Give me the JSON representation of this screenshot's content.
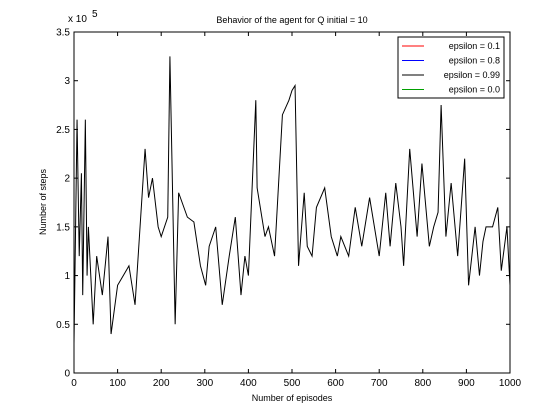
{
  "chart_data": {
    "type": "line",
    "title": "Behavior of the agent for Q initial = 10",
    "xlabel": "Number of episodes",
    "ylabel": "Number of steps",
    "y_exponent_label": "x 10",
    "y_exponent_power": "5",
    "xlim": [
      0,
      1000
    ],
    "ylim": [
      0,
      3.5
    ],
    "x_ticks": [
      0,
      100,
      200,
      300,
      400,
      500,
      600,
      700,
      800,
      900,
      1000
    ],
    "x_tick_labels": [
      "0",
      "100",
      "200",
      "300",
      "400",
      "500",
      "600",
      "700",
      "800",
      "900",
      "1000"
    ],
    "y_ticks": [
      0,
      0.5,
      1,
      1.5,
      2,
      2.5,
      3,
      3.5
    ],
    "y_tick_labels": [
      "0",
      "0.5",
      "1",
      "1.5",
      "2",
      "2.5",
      "3",
      "3.5"
    ],
    "grid": false,
    "legend_position": "top-right",
    "series": [
      {
        "name": "epsilon = 0.1",
        "color": "#ff0000",
        "x": [
          0,
          1000
        ],
        "values": [
          0.0,
          0.0
        ]
      },
      {
        "name": "epsilon = 0.8",
        "color": "#0000ff",
        "x": [
          0,
          1000
        ],
        "values": [
          0.0,
          0.0
        ]
      },
      {
        "name": "epsilon = 0.99",
        "color": "#000000",
        "x": [
          0,
          7,
          12,
          17,
          20,
          26,
          30,
          33,
          44,
          52,
          65,
          78,
          85,
          100,
          113,
          126,
          140,
          163,
          171,
          180,
          193,
          200,
          215,
          220,
          232,
          240,
          260,
          275,
          290,
          302,
          310,
          325,
          340,
          356,
          370,
          383,
          392,
          400,
          417,
          420,
          438,
          446,
          460,
          478,
          493,
          500,
          507,
          515,
          528,
          535,
          546,
          556,
          575,
          590,
          604,
          612,
          630,
          645,
          660,
          678,
          700,
          715,
          725,
          738,
          750,
          756,
          770,
          787,
          798,
          815,
          825,
          835,
          842,
          853,
          865,
          880,
          896,
          905,
          920,
          930,
          938,
          945,
          960,
          972,
          980,
          993,
          1000
        ],
        "values": [
          0.3,
          2.6,
          1.2,
          2.05,
          0.8,
          2.6,
          1.0,
          1.5,
          0.5,
          1.2,
          0.8,
          1.4,
          0.4,
          0.9,
          1.0,
          1.1,
          0.7,
          2.3,
          1.8,
          2.0,
          1.5,
          1.4,
          1.6,
          3.25,
          0.5,
          1.85,
          1.6,
          1.55,
          1.1,
          0.9,
          1.3,
          1.5,
          0.7,
          1.2,
          1.6,
          0.8,
          1.2,
          1.0,
          2.8,
          1.9,
          1.4,
          1.5,
          1.2,
          2.65,
          2.8,
          2.9,
          2.95,
          1.1,
          1.85,
          1.3,
          1.2,
          1.7,
          1.9,
          1.4,
          1.2,
          1.4,
          1.2,
          1.7,
          1.3,
          1.8,
          1.2,
          1.85,
          1.3,
          1.95,
          1.5,
          1.1,
          2.3,
          1.4,
          2.15,
          1.3,
          1.5,
          1.65,
          2.75,
          1.4,
          1.95,
          1.2,
          2.2,
          0.9,
          1.5,
          1.0,
          1.35,
          1.5,
          1.5,
          1.7,
          1.05,
          1.5,
          0.9
        ]
      },
      {
        "name": "epsilon = 0.0",
        "color": "#00a000",
        "x": [
          0,
          1000
        ],
        "values": [
          0.0,
          0.0
        ]
      }
    ]
  }
}
